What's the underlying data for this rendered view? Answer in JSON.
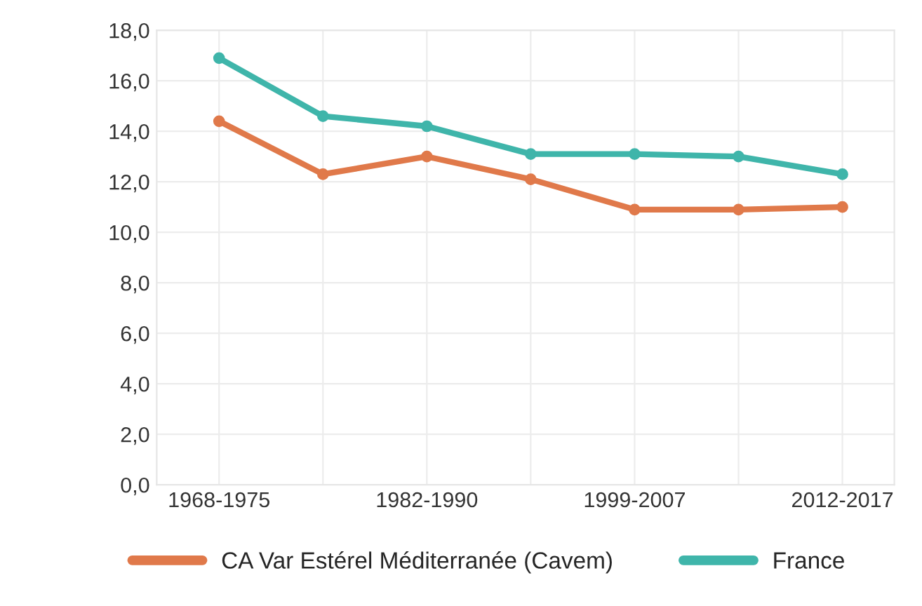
{
  "chart_data": {
    "type": "line",
    "categories": [
      "1968-1975",
      null,
      "1982-1990",
      null,
      "1999-2007",
      null,
      "2012-2017"
    ],
    "series": [
      {
        "name": "CA Var Estérel Méditerranée (Cavem)",
        "color": "#e0794a",
        "values": [
          14.4,
          12.3,
          13.0,
          12.1,
          10.9,
          10.9,
          11.0
        ]
      },
      {
        "name": "France",
        "color": "#3fb5aa",
        "values": [
          16.9,
          14.6,
          14.2,
          13.1,
          13.1,
          13.0,
          12.3
        ]
      }
    ],
    "ylim": [
      0,
      18
    ],
    "yticks": [
      {
        "value": 0,
        "label": "0,0"
      },
      {
        "value": 2,
        "label": "2,0"
      },
      {
        "value": 4,
        "label": "4,0"
      },
      {
        "value": 6,
        "label": "6,0"
      },
      {
        "value": 8,
        "label": "8,0"
      },
      {
        "value": 10,
        "label": "10,0"
      },
      {
        "value": 12,
        "label": "12,0"
      },
      {
        "value": 14,
        "label": "14,0"
      },
      {
        "value": 16,
        "label": "16,0"
      },
      {
        "value": 18,
        "label": "18,0"
      }
    ],
    "grid": true,
    "legend": "bottom",
    "marker": "circle",
    "line_style": "solid"
  }
}
